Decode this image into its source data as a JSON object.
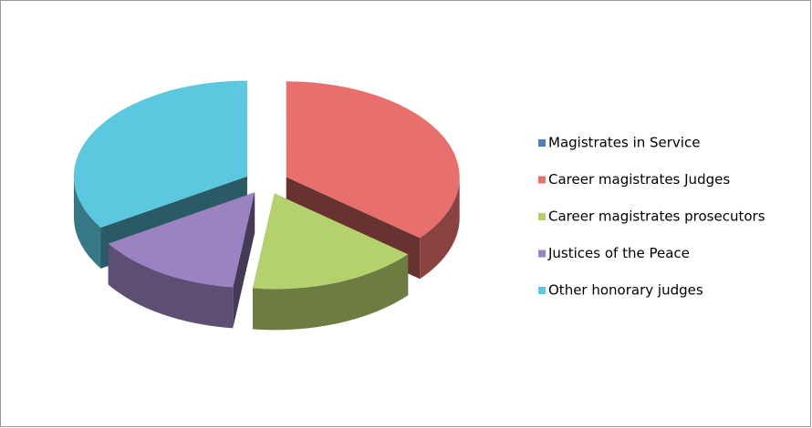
{
  "chart_data": {
    "type": "pie",
    "categories": [
      "Magistrates in Service",
      "Career magistrates Judges",
      "Career magistrates prosecutors",
      "Justices of the Peace",
      "Other honorary judges"
    ],
    "values": [
      0,
      36,
      16,
      14,
      34
    ],
    "colors": [
      "#4f81bd",
      "#e8706c",
      "#b5d16e",
      "#9b82c0",
      "#5bc8e0"
    ],
    "legend": "right"
  }
}
